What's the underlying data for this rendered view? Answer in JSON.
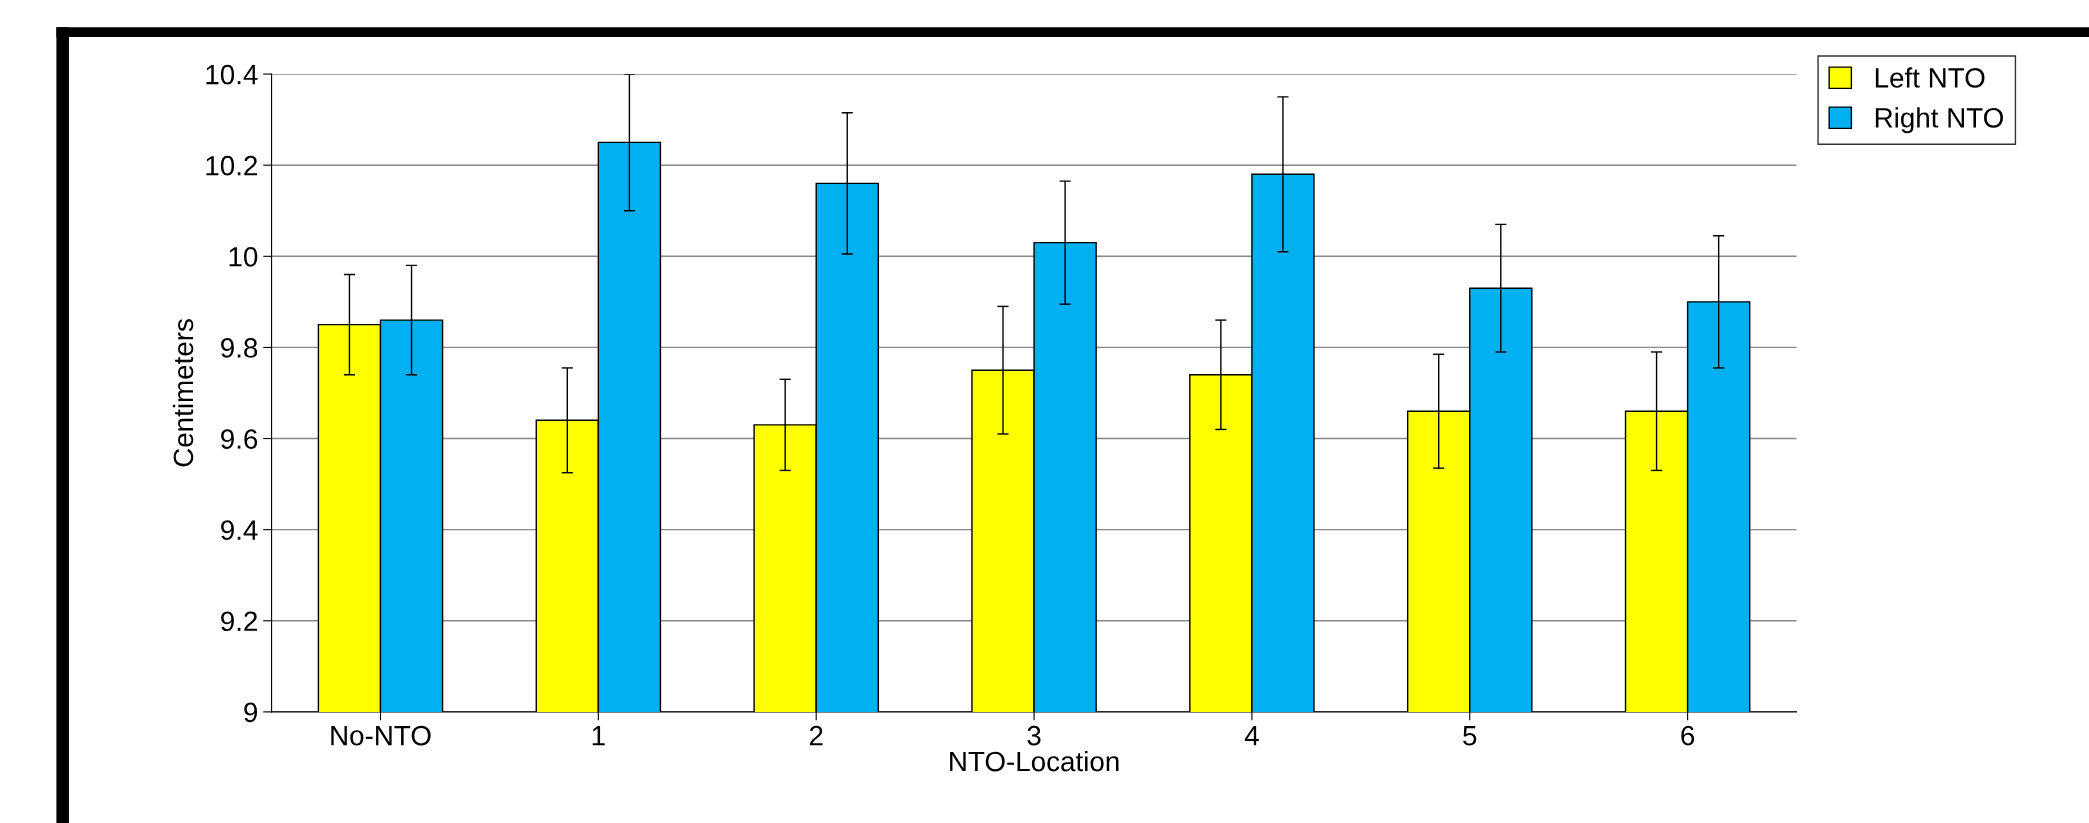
{
  "chart_data": {
    "type": "bar",
    "xlabel": "NTO-Location",
    "ylabel": "Centimeters",
    "categories": [
      "No-NTO",
      "1",
      "2",
      "3",
      "4",
      "5",
      "6"
    ],
    "series": [
      {
        "name": "Left NTO",
        "color": "#ffff00",
        "values": [
          9.85,
          9.64,
          9.63,
          9.75,
          9.74,
          9.66,
          9.66
        ],
        "errors": [
          0.11,
          0.115,
          0.1,
          0.14,
          0.12,
          0.125,
          0.13
        ]
      },
      {
        "name": "Right NTO",
        "color": "#00b0f0",
        "values": [
          9.86,
          10.25,
          10.16,
          10.03,
          10.18,
          9.93,
          9.9
        ],
        "errors": [
          0.12,
          0.15,
          0.155,
          0.135,
          0.17,
          0.14,
          0.145
        ]
      }
    ],
    "ylim": [
      9,
      10.4
    ],
    "yticks": [
      9,
      9.2,
      9.4,
      9.6,
      9.8,
      10,
      10.2,
      10.4
    ],
    "grid": "y",
    "legend": "top right"
  }
}
